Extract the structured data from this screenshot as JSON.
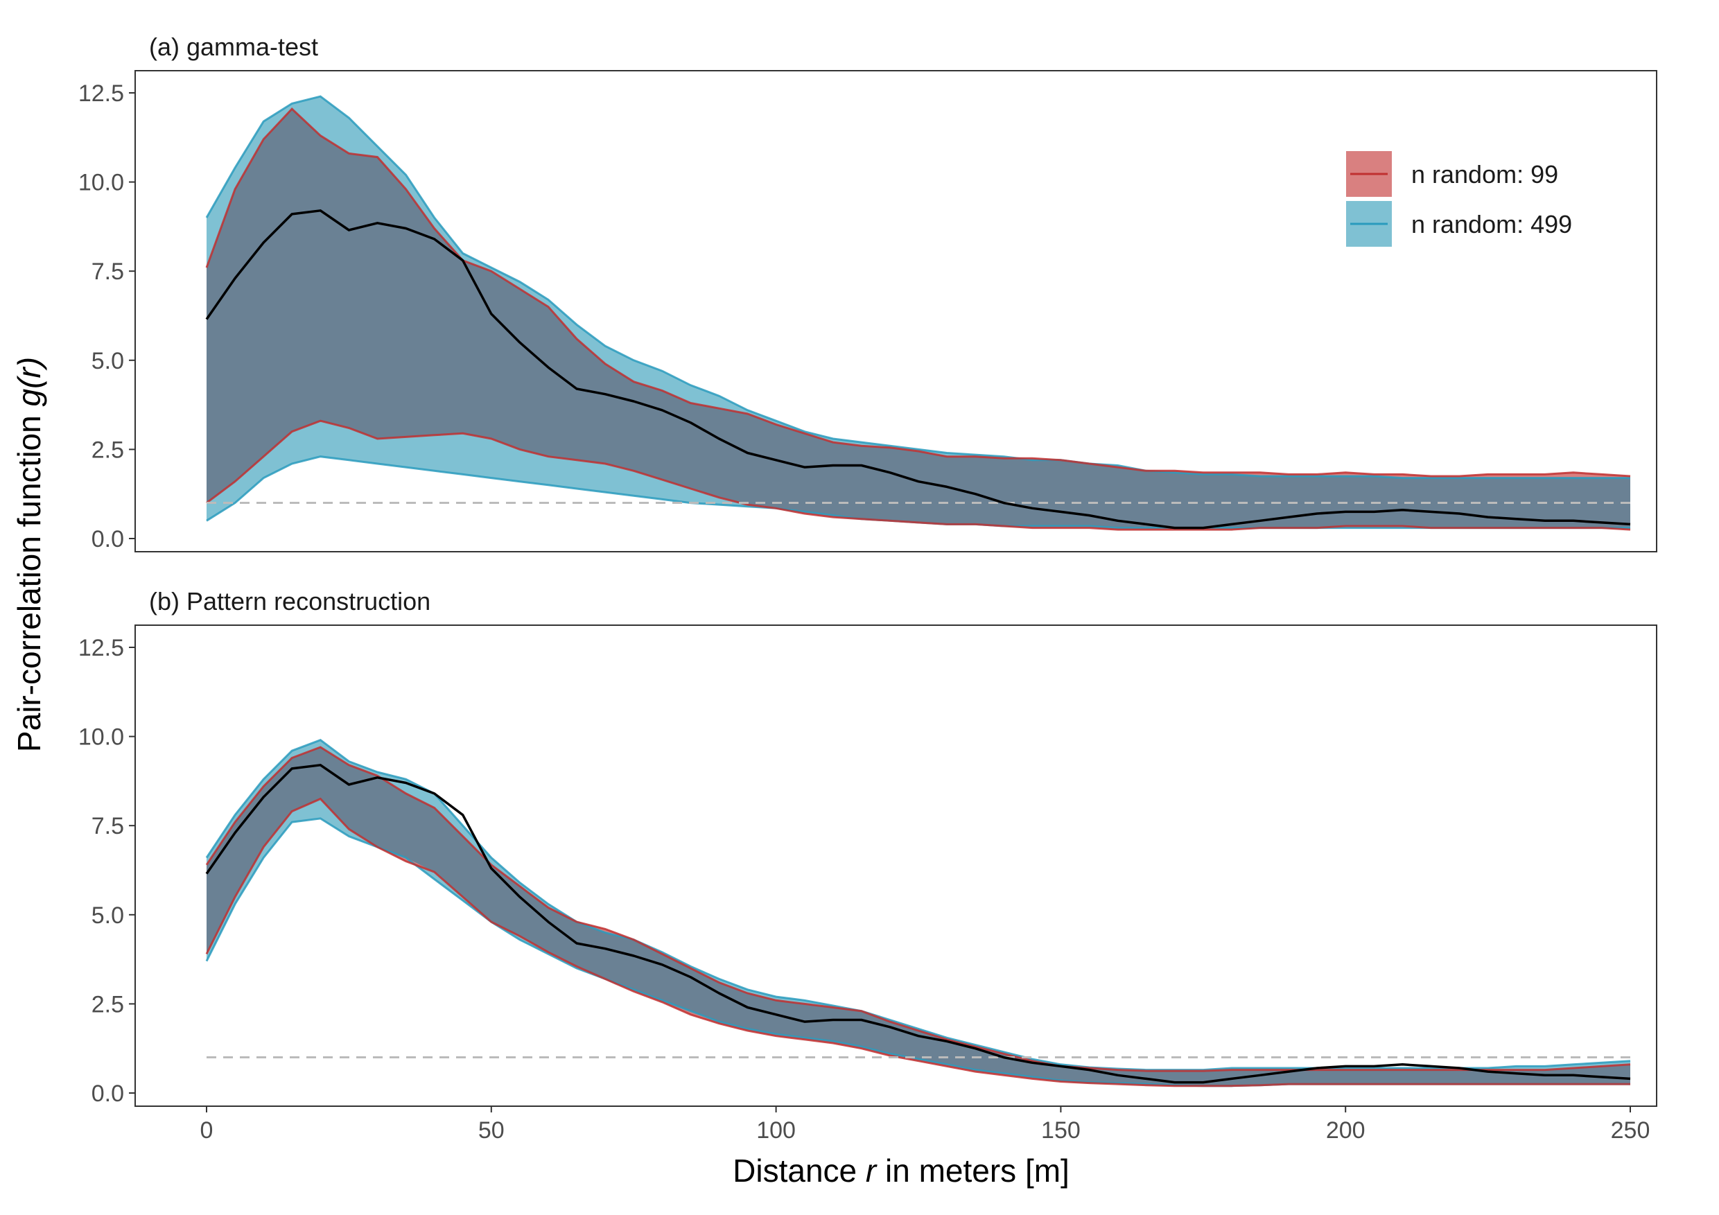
{
  "chart_data": {
    "type": "area",
    "xlabel": {
      "prefix": "Distance ",
      "var": "r",
      "suffix": " in meters [m]"
    },
    "ylabel": {
      "prefix": "Pair-correlation function ",
      "var": "g(r)"
    },
    "xlim": [
      0,
      250
    ],
    "ylim": [
      0,
      12.5
    ],
    "x_ticks": [
      0,
      50,
      100,
      150,
      200,
      250
    ],
    "y_ticks": [
      0.0,
      2.5,
      5.0,
      7.5,
      10.0,
      12.5
    ],
    "x_tick_labels": [
      "0",
      "50",
      "100",
      "150",
      "200",
      "250"
    ],
    "y_tick_labels": [
      "0.0",
      "2.5",
      "5.0",
      "7.5",
      "10.0",
      "12.5"
    ],
    "reference_line": {
      "y": 1.0,
      "style": "dashed",
      "color": "#bbbbbb"
    },
    "grid": false,
    "legend": {
      "placement": "top-right",
      "items": [
        {
          "label": "n random: 99",
          "fill": "#d98080",
          "line": "#c03030"
        },
        {
          "label": "n random: 499",
          "fill": "#7fc1d3",
          "line": "#2a9bbd"
        }
      ]
    },
    "x": [
      0,
      5,
      10,
      15,
      20,
      25,
      30,
      35,
      40,
      45,
      50,
      55,
      60,
      65,
      70,
      75,
      80,
      85,
      90,
      95,
      100,
      105,
      110,
      115,
      120,
      125,
      130,
      135,
      140,
      145,
      150,
      155,
      160,
      165,
      170,
      175,
      180,
      185,
      190,
      195,
      200,
      205,
      210,
      215,
      220,
      225,
      230,
      235,
      240,
      245,
      250
    ],
    "observed": [
      6.15,
      7.3,
      8.3,
      9.1,
      9.2,
      8.65,
      8.85,
      8.7,
      8.4,
      7.8,
      6.3,
      5.5,
      4.8,
      4.2,
      4.05,
      3.85,
      3.6,
      3.25,
      2.8,
      2.4,
      2.2,
      2.0,
      2.05,
      2.05,
      1.85,
      1.6,
      1.45,
      1.25,
      1.0,
      0.85,
      0.75,
      0.65,
      0.5,
      0.4,
      0.3,
      0.3,
      0.4,
      0.5,
      0.6,
      0.7,
      0.75,
      0.75,
      0.8,
      0.75,
      0.7,
      0.6,
      0.55,
      0.5,
      0.5,
      0.45,
      0.4
    ],
    "panels": [
      {
        "title": "(a) gamma-test",
        "show_legend": true,
        "envelopes": [
          {
            "label": "n random: 499",
            "hi": [
              9.0,
              10.4,
              11.7,
              12.2,
              12.4,
              11.8,
              11.0,
              10.2,
              9.0,
              8.0,
              7.6,
              7.2,
              6.7,
              6.0,
              5.4,
              5.0,
              4.7,
              4.3,
              4.0,
              3.6,
              3.3,
              3.0,
              2.8,
              2.7,
              2.6,
              2.5,
              2.4,
              2.35,
              2.3,
              2.2,
              2.2,
              2.1,
              2.05,
              1.9,
              1.85,
              1.8,
              1.8,
              1.75,
              1.75,
              1.75,
              1.75,
              1.75,
              1.7,
              1.7,
              1.7,
              1.7,
              1.7,
              1.7,
              1.7,
              1.7,
              1.7
            ],
            "lo": [
              0.5,
              1.0,
              1.7,
              2.1,
              2.3,
              2.2,
              2.1,
              2.0,
              1.9,
              1.8,
              1.7,
              1.6,
              1.5,
              1.4,
              1.3,
              1.2,
              1.1,
              1.0,
              0.95,
              0.9,
              0.85,
              0.75,
              0.65,
              0.55,
              0.5,
              0.45,
              0.4,
              0.4,
              0.35,
              0.35,
              0.35,
              0.35,
              0.3,
              0.3,
              0.3,
              0.3,
              0.3,
              0.3,
              0.3,
              0.3,
              0.3,
              0.3,
              0.3,
              0.3,
              0.3,
              0.3,
              0.3,
              0.3,
              0.3,
              0.3,
              0.3
            ]
          },
          {
            "label": "n random: 99",
            "hi": [
              7.6,
              9.8,
              11.2,
              12.05,
              11.3,
              10.8,
              10.7,
              9.8,
              8.7,
              7.8,
              7.5,
              7.0,
              6.5,
              5.6,
              4.9,
              4.4,
              4.15,
              3.8,
              3.65,
              3.5,
              3.2,
              2.95,
              2.7,
              2.6,
              2.55,
              2.45,
              2.3,
              2.3,
              2.25,
              2.25,
              2.2,
              2.1,
              2.0,
              1.9,
              1.9,
              1.85,
              1.85,
              1.85,
              1.8,
              1.8,
              1.85,
              1.8,
              1.8,
              1.75,
              1.75,
              1.8,
              1.8,
              1.8,
              1.85,
              1.8,
              1.75
            ],
            "lo": [
              1.0,
              1.6,
              2.3,
              3.0,
              3.3,
              3.1,
              2.8,
              2.85,
              2.9,
              2.95,
              2.8,
              2.5,
              2.3,
              2.2,
              2.1,
              1.9,
              1.65,
              1.4,
              1.15,
              0.95,
              0.85,
              0.7,
              0.6,
              0.55,
              0.5,
              0.45,
              0.4,
              0.4,
              0.35,
              0.3,
              0.3,
              0.3,
              0.25,
              0.25,
              0.25,
              0.25,
              0.25,
              0.3,
              0.3,
              0.3,
              0.35,
              0.35,
              0.35,
              0.3,
              0.3,
              0.3,
              0.3,
              0.3,
              0.3,
              0.3,
              0.25
            ]
          }
        ]
      },
      {
        "title": "(b) Pattern reconstruction",
        "show_legend": false,
        "envelopes": [
          {
            "label": "n random: 499",
            "hi": [
              6.6,
              7.8,
              8.8,
              9.6,
              9.9,
              9.3,
              9.0,
              8.8,
              8.4,
              7.5,
              6.6,
              5.9,
              5.3,
              4.8,
              4.5,
              4.3,
              3.95,
              3.55,
              3.2,
              2.9,
              2.7,
              2.6,
              2.45,
              2.3,
              2.05,
              1.8,
              1.55,
              1.35,
              1.15,
              0.95,
              0.8,
              0.72,
              0.68,
              0.65,
              0.65,
              0.65,
              0.7,
              0.7,
              0.7,
              0.7,
              0.7,
              0.7,
              0.7,
              0.7,
              0.7,
              0.7,
              0.75,
              0.75,
              0.8,
              0.85,
              0.9
            ],
            "lo": [
              3.7,
              5.3,
              6.6,
              7.6,
              7.7,
              7.2,
              6.9,
              6.6,
              6.0,
              5.4,
              4.8,
              4.3,
              3.9,
              3.5,
              3.2,
              2.9,
              2.6,
              2.3,
              2.0,
              1.8,
              1.65,
              1.55,
              1.45,
              1.3,
              1.1,
              0.95,
              0.8,
              0.65,
              0.55,
              0.45,
              0.35,
              0.3,
              0.28,
              0.25,
              0.22,
              0.2,
              0.2,
              0.22,
              0.25,
              0.25,
              0.25,
              0.25,
              0.25,
              0.25,
              0.25,
              0.25,
              0.25,
              0.25,
              0.25,
              0.25,
              0.25
            ]
          },
          {
            "label": "n random: 99",
            "hi": [
              6.4,
              7.6,
              8.6,
              9.4,
              9.7,
              9.2,
              8.9,
              8.4,
              8.0,
              7.2,
              6.4,
              5.8,
              5.2,
              4.8,
              4.6,
              4.3,
              3.9,
              3.5,
              3.1,
              2.8,
              2.6,
              2.5,
              2.4,
              2.3,
              2.0,
              1.75,
              1.5,
              1.3,
              1.1,
              0.9,
              0.75,
              0.7,
              0.65,
              0.62,
              0.62,
              0.62,
              0.65,
              0.65,
              0.65,
              0.65,
              0.65,
              0.65,
              0.65,
              0.65,
              0.65,
              0.65,
              0.65,
              0.65,
              0.7,
              0.75,
              0.8
            ],
            "lo": [
              3.9,
              5.5,
              6.9,
              7.9,
              8.25,
              7.4,
              6.9,
              6.5,
              6.2,
              5.5,
              4.8,
              4.4,
              3.95,
              3.55,
              3.2,
              2.85,
              2.55,
              2.2,
              1.95,
              1.75,
              1.6,
              1.5,
              1.4,
              1.25,
              1.05,
              0.9,
              0.75,
              0.6,
              0.5,
              0.4,
              0.32,
              0.28,
              0.25,
              0.22,
              0.2,
              0.2,
              0.2,
              0.22,
              0.25,
              0.25,
              0.25,
              0.25,
              0.25,
              0.25,
              0.25,
              0.25,
              0.25,
              0.25,
              0.25,
              0.25,
              0.25
            ]
          }
        ]
      }
    ]
  }
}
